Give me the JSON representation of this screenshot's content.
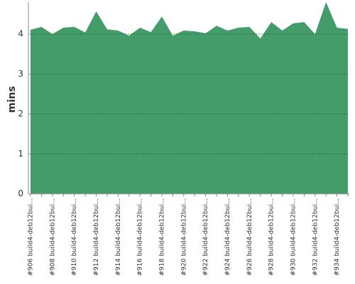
{
  "chart_data": {
    "type": "area",
    "y_label": "mins",
    "color": "#449c6a",
    "grid": true,
    "categories": [
      "#906 build4-deb12bui...",
      null,
      "#908 build4-deb12bui...",
      null,
      "#910 build4-deb12bui...",
      null,
      "#912 build4-deb12bui...",
      null,
      "#914 build4-deb12bui...",
      null,
      "#916 build4-deb12bui...",
      null,
      "#918 build4-deb12bui...",
      null,
      "#920 build4-deb12bui...",
      null,
      "#922 build4-deb12bui...",
      null,
      "#924 build4-deb12bui...",
      null,
      "#926 build4-deb12bui...",
      null,
      "#928 build4-deb12bui...",
      null,
      "#930 build4-deb12bui...",
      null,
      "#932 build4-deb12bui...",
      null,
      "#934 build4-deb12bui...",
      null
    ],
    "values": [
      4.11,
      4.18,
      4.0,
      4.16,
      4.18,
      4.04,
      4.57,
      4.12,
      4.09,
      3.96,
      4.16,
      4.05,
      4.44,
      3.96,
      4.09,
      4.07,
      4.02,
      4.21,
      4.09,
      4.16,
      4.18,
      3.89,
      4.3,
      4.09,
      4.27,
      4.3,
      4.0,
      4.8,
      4.16,
      4.13
    ],
    "ylim": [
      0,
      4.8
    ],
    "yticks": [
      0,
      1,
      2,
      3,
      4
    ]
  }
}
